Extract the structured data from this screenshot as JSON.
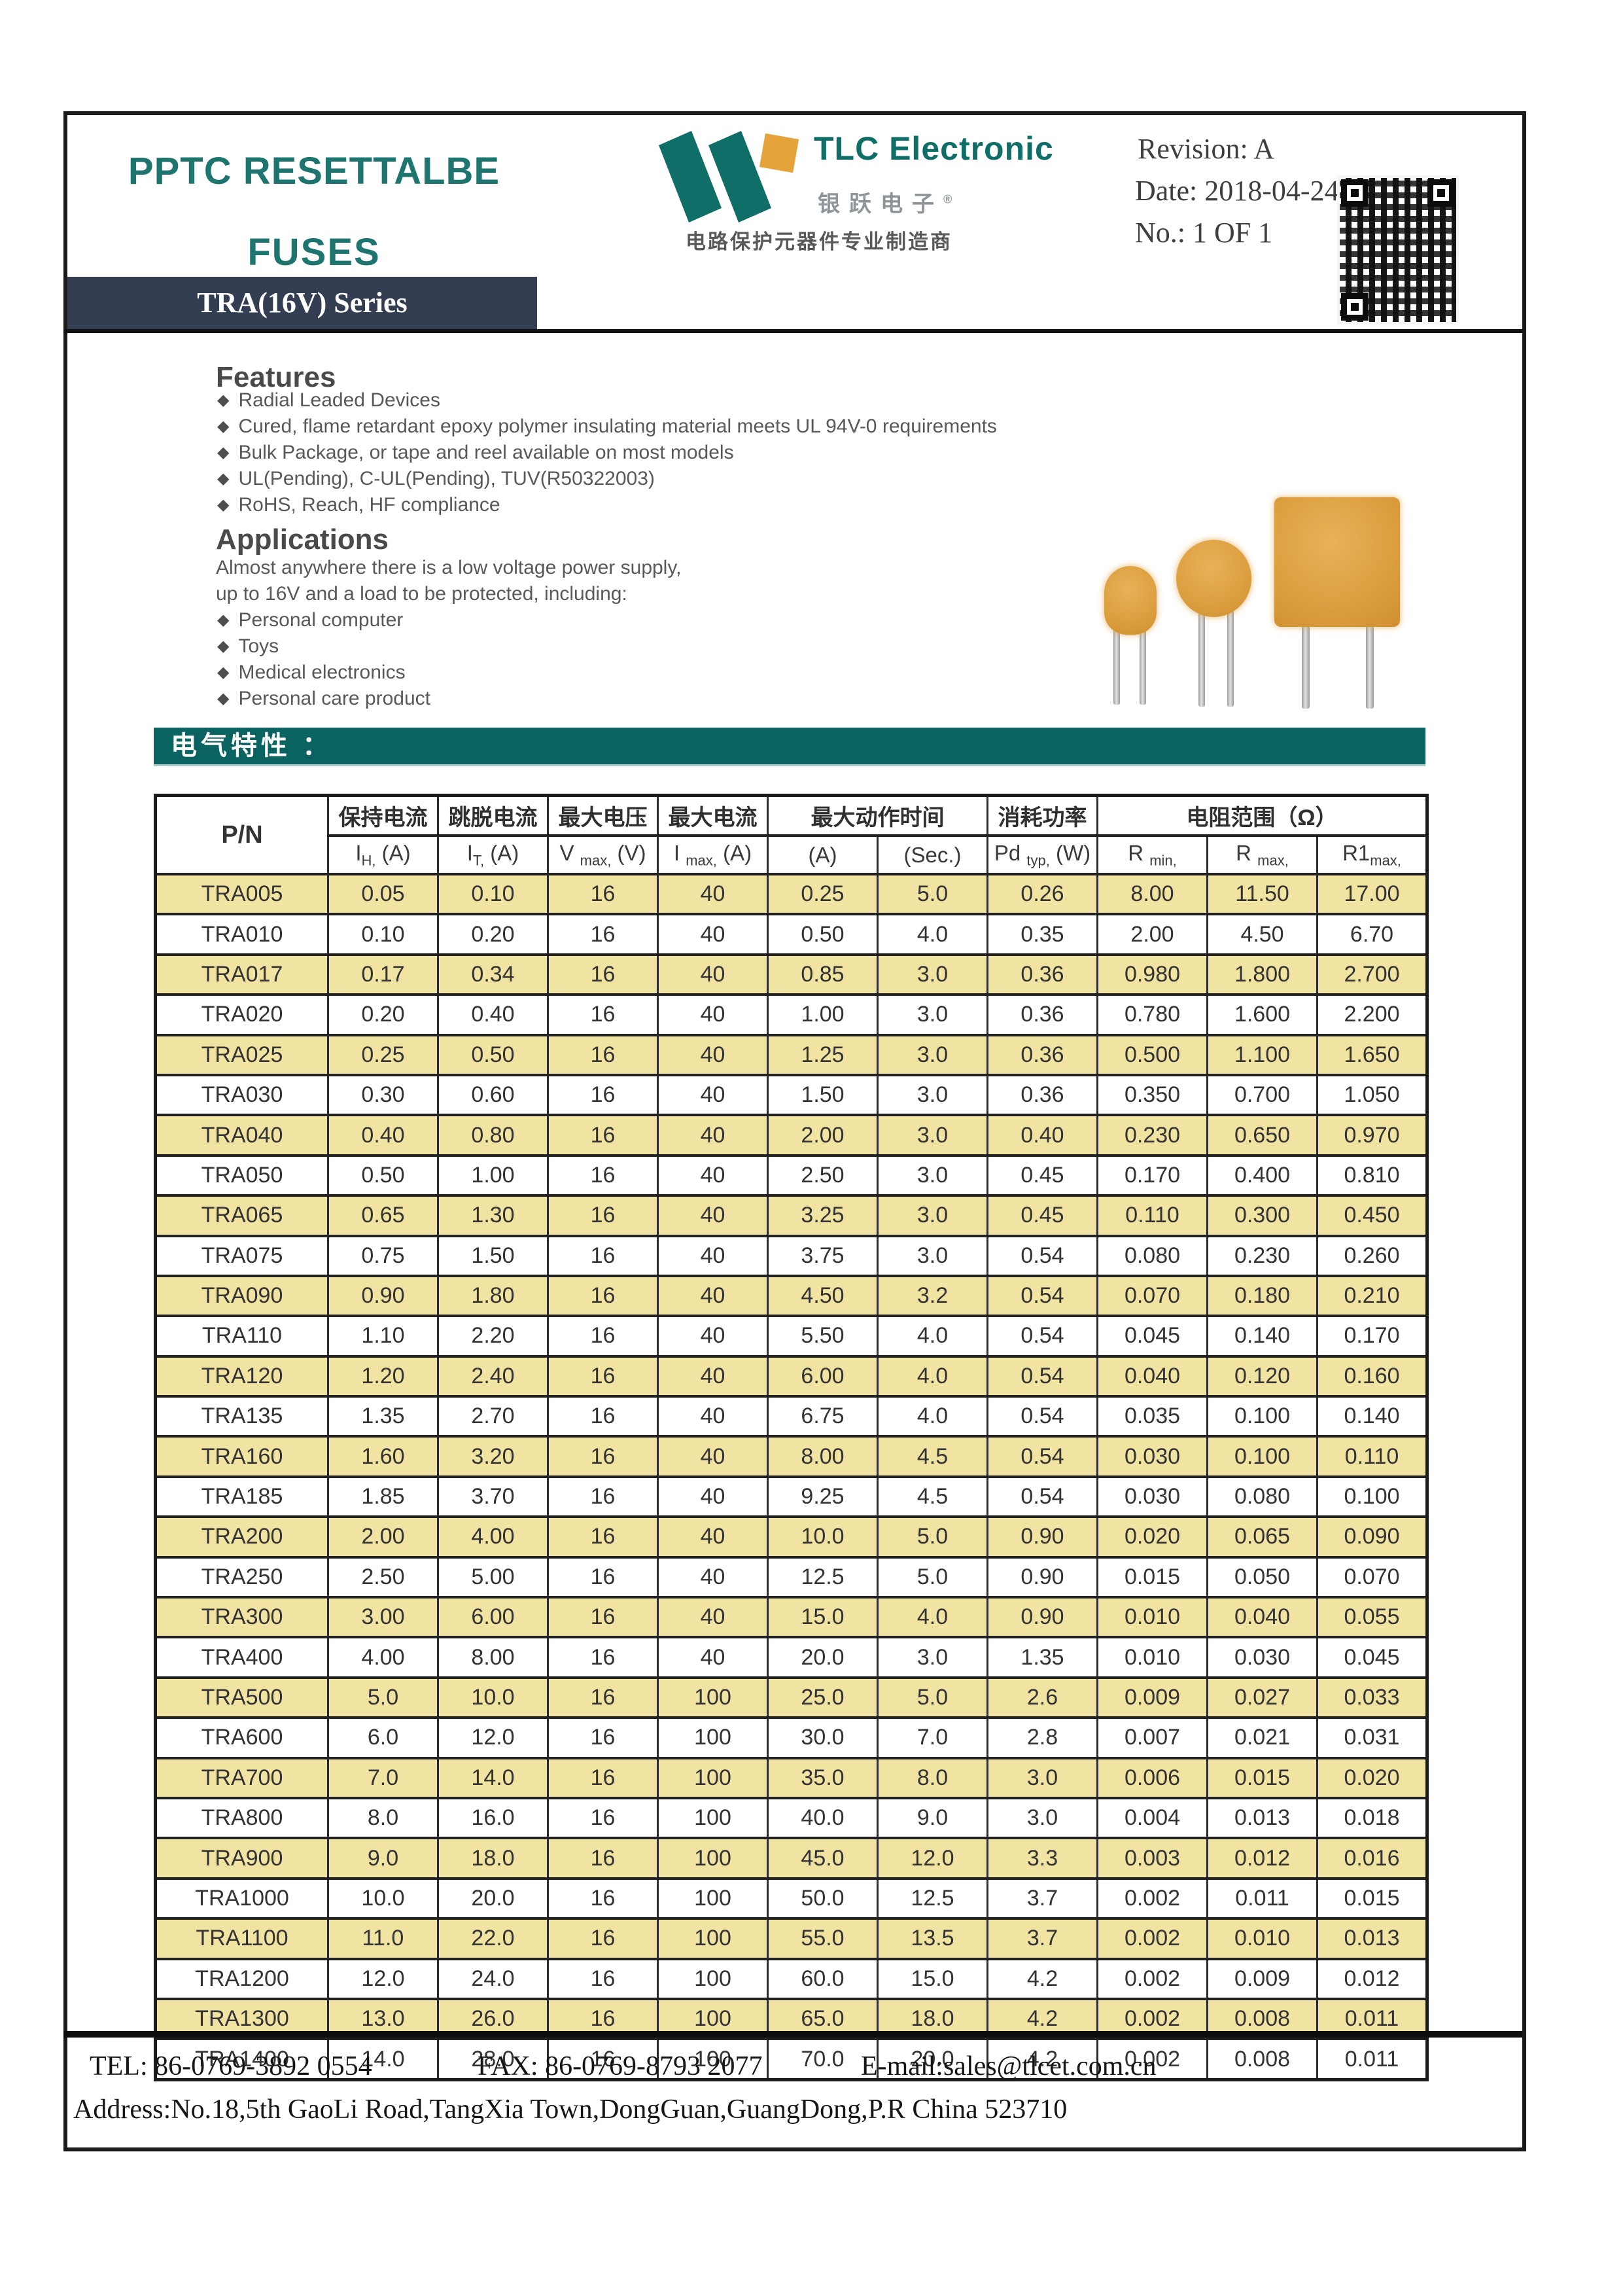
{
  "header": {
    "title_line1": "PPTC RESETTALBE",
    "title_line2": "FUSES",
    "series_banner": "TRA(16V) Series",
    "revision": "Revision: A",
    "date": "Date: 2018-04-24",
    "no": "No.: 1 OF 1"
  },
  "logo": {
    "brand": "TLC Electronic",
    "brand_cn": "银跃电子",
    "registered_mark": "®",
    "tagline_cn": "电路保护元器件专业制造商"
  },
  "features": {
    "heading": "Features",
    "items": [
      "Radial Leaded Devices",
      "Cured, flame retardant epoxy polymer insulating material meets UL 94V-0 requirements",
      "Bulk Package, or tape and reel available on most models",
      "UL(Pending), C-UL(Pending), TUV(R50322003)",
      "RoHS, Reach, HF compliance"
    ]
  },
  "applications": {
    "heading": "Applications",
    "intro": [
      "Almost anywhere there is a low voltage power supply,",
      "up to 16V and a load to be protected, including:"
    ],
    "items": [
      "Personal computer",
      "Toys",
      "Medical electronics",
      "Personal care product"
    ]
  },
  "electrical": {
    "banner": "电气特性 ："
  },
  "table": {
    "pn_header": "P/N",
    "groups": [
      {
        "label": "保持电流",
        "span": 1
      },
      {
        "label": "跳脱电流",
        "span": 1
      },
      {
        "label": "最大电压",
        "span": 1
      },
      {
        "label": "最大电流",
        "span": 1
      },
      {
        "label": "最大动作时间",
        "span": 2
      },
      {
        "label": "消耗功率",
        "span": 1
      },
      {
        "label": "电阻范围（Ω）",
        "span": 3
      }
    ],
    "subheaders": [
      {
        "pre": "I",
        "sub": "H,",
        "post": " (A)"
      },
      {
        "pre": "I",
        "sub": "T,",
        "post": " (A)"
      },
      {
        "pre": "V ",
        "sub": "max,",
        "post": " (V)"
      },
      {
        "pre": "I ",
        "sub": "max,",
        "post": " (A)"
      },
      {
        "pre": "(A)",
        "sub": "",
        "post": ""
      },
      {
        "pre": "(Sec.)",
        "sub": "",
        "post": ""
      },
      {
        "pre": "Pd ",
        "sub": "typ,",
        "post": " (W)"
      },
      {
        "pre": "R ",
        "sub": "min,",
        "post": ""
      },
      {
        "pre": "R ",
        "sub": "max,",
        "post": ""
      },
      {
        "pre": "R1",
        "sub": "max,",
        "post": ""
      }
    ],
    "rows": [
      [
        "TRA005",
        "0.05",
        "0.10",
        "16",
        "40",
        "0.25",
        "5.0",
        "0.26",
        "8.00",
        "11.50",
        "17.00"
      ],
      [
        "TRA010",
        "0.10",
        "0.20",
        "16",
        "40",
        "0.50",
        "4.0",
        "0.35",
        "2.00",
        "4.50",
        "6.70"
      ],
      [
        "TRA017",
        "0.17",
        "0.34",
        "16",
        "40",
        "0.85",
        "3.0",
        "0.36",
        "0.980",
        "1.800",
        "2.700"
      ],
      [
        "TRA020",
        "0.20",
        "0.40",
        "16",
        "40",
        "1.00",
        "3.0",
        "0.36",
        "0.780",
        "1.600",
        "2.200"
      ],
      [
        "TRA025",
        "0.25",
        "0.50",
        "16",
        "40",
        "1.25",
        "3.0",
        "0.36",
        "0.500",
        "1.100",
        "1.650"
      ],
      [
        "TRA030",
        "0.30",
        "0.60",
        "16",
        "40",
        "1.50",
        "3.0",
        "0.36",
        "0.350",
        "0.700",
        "1.050"
      ],
      [
        "TRA040",
        "0.40",
        "0.80",
        "16",
        "40",
        "2.00",
        "3.0",
        "0.40",
        "0.230",
        "0.650",
        "0.970"
      ],
      [
        "TRA050",
        "0.50",
        "1.00",
        "16",
        "40",
        "2.50",
        "3.0",
        "0.45",
        "0.170",
        "0.400",
        "0.810"
      ],
      [
        "TRA065",
        "0.65",
        "1.30",
        "16",
        "40",
        "3.25",
        "3.0",
        "0.45",
        "0.110",
        "0.300",
        "0.450"
      ],
      [
        "TRA075",
        "0.75",
        "1.50",
        "16",
        "40",
        "3.75",
        "3.0",
        "0.54",
        "0.080",
        "0.230",
        "0.260"
      ],
      [
        "TRA090",
        "0.90",
        "1.80",
        "16",
        "40",
        "4.50",
        "3.2",
        "0.54",
        "0.070",
        "0.180",
        "0.210"
      ],
      [
        "TRA110",
        "1.10",
        "2.20",
        "16",
        "40",
        "5.50",
        "4.0",
        "0.54",
        "0.045",
        "0.140",
        "0.170"
      ],
      [
        "TRA120",
        "1.20",
        "2.40",
        "16",
        "40",
        "6.00",
        "4.0",
        "0.54",
        "0.040",
        "0.120",
        "0.160"
      ],
      [
        "TRA135",
        "1.35",
        "2.70",
        "16",
        "40",
        "6.75",
        "4.0",
        "0.54",
        "0.035",
        "0.100",
        "0.140"
      ],
      [
        "TRA160",
        "1.60",
        "3.20",
        "16",
        "40",
        "8.00",
        "4.5",
        "0.54",
        "0.030",
        "0.100",
        "0.110"
      ],
      [
        "TRA185",
        "1.85",
        "3.70",
        "16",
        "40",
        "9.25",
        "4.5",
        "0.54",
        "0.030",
        "0.080",
        "0.100"
      ],
      [
        "TRA200",
        "2.00",
        "4.00",
        "16",
        "40",
        "10.0",
        "5.0",
        "0.90",
        "0.020",
        "0.065",
        "0.090"
      ],
      [
        "TRA250",
        "2.50",
        "5.00",
        "16",
        "40",
        "12.5",
        "5.0",
        "0.90",
        "0.015",
        "0.050",
        "0.070"
      ],
      [
        "TRA300",
        "3.00",
        "6.00",
        "16",
        "40",
        "15.0",
        "4.0",
        "0.90",
        "0.010",
        "0.040",
        "0.055"
      ],
      [
        "TRA400",
        "4.00",
        "8.00",
        "16",
        "40",
        "20.0",
        "3.0",
        "1.35",
        "0.010",
        "0.030",
        "0.045"
      ],
      [
        "TRA500",
        "5.0",
        "10.0",
        "16",
        "100",
        "25.0",
        "5.0",
        "2.6",
        "0.009",
        "0.027",
        "0.033"
      ],
      [
        "TRA600",
        "6.0",
        "12.0",
        "16",
        "100",
        "30.0",
        "7.0",
        "2.8",
        "0.007",
        "0.021",
        "0.031"
      ],
      [
        "TRA700",
        "7.0",
        "14.0",
        "16",
        "100",
        "35.0",
        "8.0",
        "3.0",
        "0.006",
        "0.015",
        "0.020"
      ],
      [
        "TRA800",
        "8.0",
        "16.0",
        "16",
        "100",
        "40.0",
        "9.0",
        "3.0",
        "0.004",
        "0.013",
        "0.018"
      ],
      [
        "TRA900",
        "9.0",
        "18.0",
        "16",
        "100",
        "45.0",
        "12.0",
        "3.3",
        "0.003",
        "0.012",
        "0.016"
      ],
      [
        "TRA1000",
        "10.0",
        "20.0",
        "16",
        "100",
        "50.0",
        "12.5",
        "3.7",
        "0.002",
        "0.011",
        "0.015"
      ],
      [
        "TRA1100",
        "11.0",
        "22.0",
        "16",
        "100",
        "55.0",
        "13.5",
        "3.7",
        "0.002",
        "0.010",
        "0.013"
      ],
      [
        "TRA1200",
        "12.0",
        "24.0",
        "16",
        "100",
        "60.0",
        "15.0",
        "4.2",
        "0.002",
        "0.009",
        "0.012"
      ],
      [
        "TRA1300",
        "13.0",
        "26.0",
        "16",
        "100",
        "65.0",
        "18.0",
        "4.2",
        "0.002",
        "0.008",
        "0.011"
      ],
      [
        "TRA1400",
        "14.0",
        "28.0",
        "16",
        "100",
        "70.0",
        "20.0",
        "4.2",
        "0.002",
        "0.008",
        "0.011"
      ]
    ]
  },
  "footer": {
    "tel": "TEL: 86-0769-3892 0554",
    "fax": "FAX: 86-0769-8793 2077",
    "email": "E-mail:sales@tlcet.com.cn",
    "address": "Address:No.18,5th GaoLi Road,TangXia Town,DongGuan,GuangDong,P.R China 523710"
  },
  "colors": {
    "title_teal": "#1e756f",
    "logo_teal": "#0f6e68",
    "logo_orange": "#e5a33c",
    "series_banner_bg": "#333e52",
    "electrical_banner_bg": "#0a6361",
    "row_yellow": "#f1e3a1"
  }
}
